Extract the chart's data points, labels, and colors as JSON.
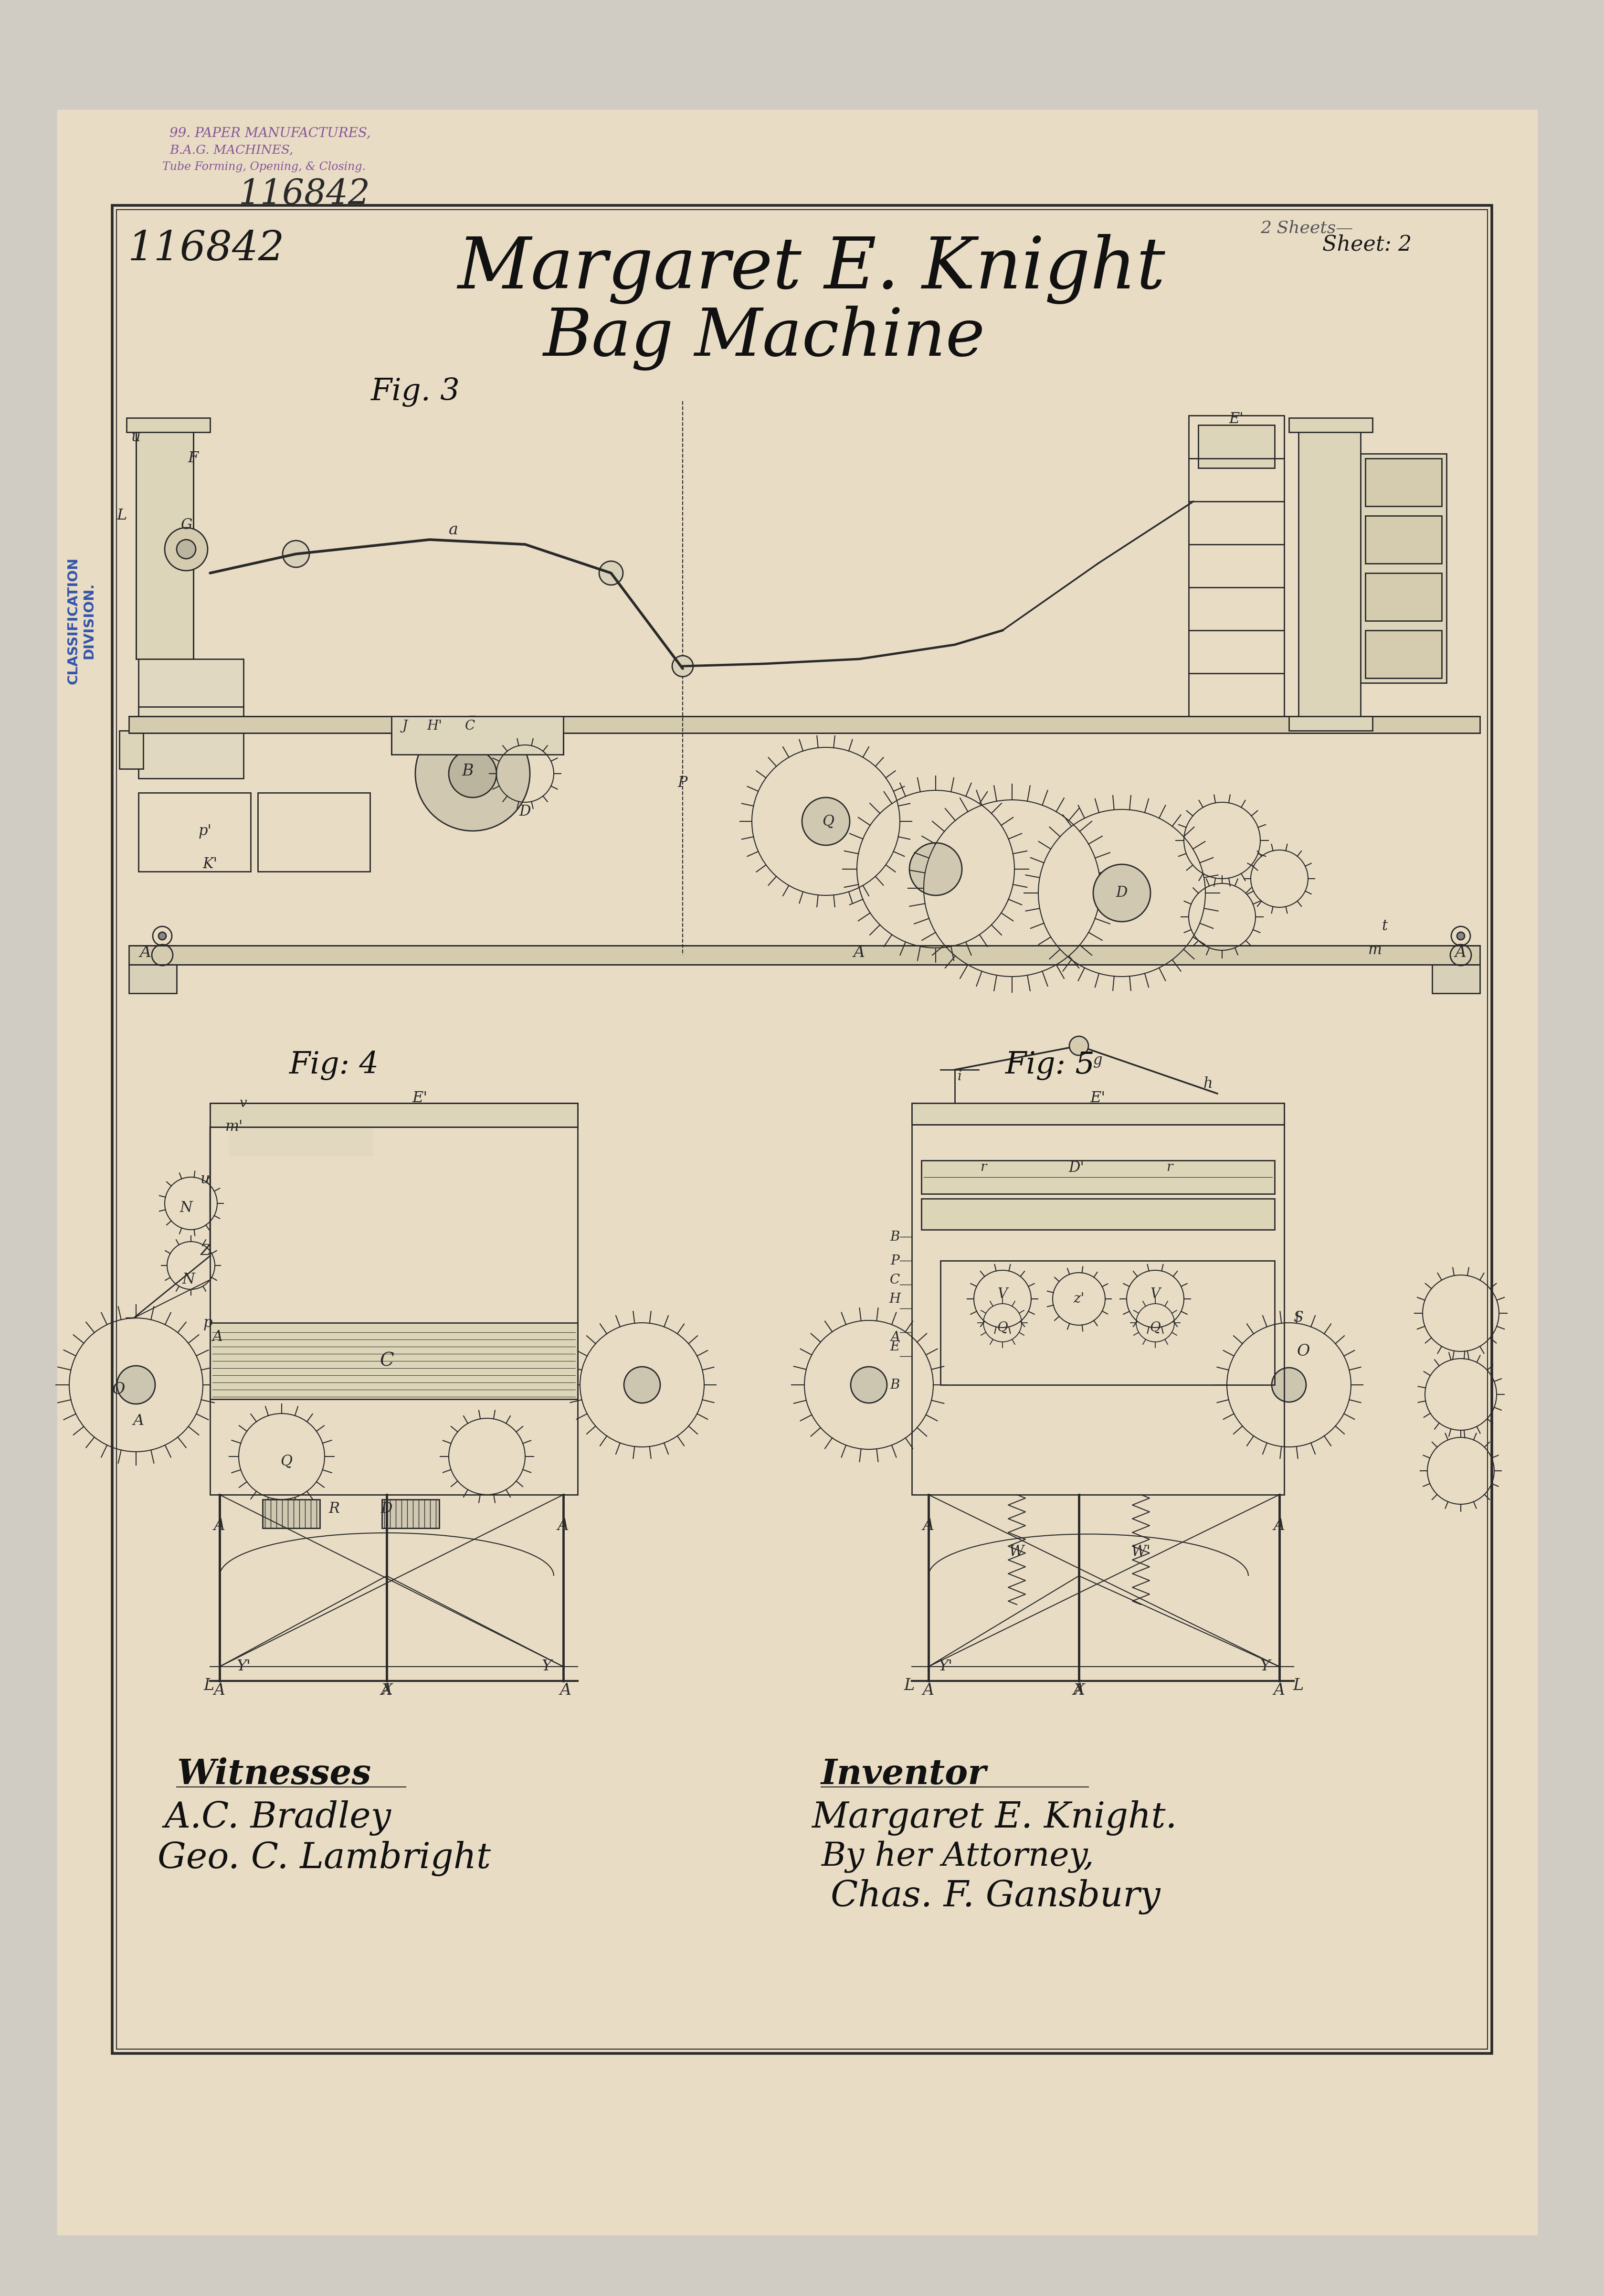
{
  "bg_color": "#ccc8c0",
  "paper_color": "#e8dcc8",
  "border_color": "#333333",
  "ink_color": "#2a2a2a",
  "blue_color": "#3355aa",
  "stamp_color": "#885599",
  "title1": "Margaret E. Knight",
  "title2": "Bag Machine",
  "patent_number": "116842",
  "sheet_text1": "2 Sheets",
  "sheet_text2": "Sheet: 2",
  "fig3_label": "Fig. 3",
  "fig4_label": "Fig: 4",
  "fig5_label": "Fig: 5",
  "witnesses_label": "Witnesses",
  "witness1": "A.C. Bradley",
  "witness2": "Geo. C. Lambright",
  "inventor_label": "Inventor",
  "inventor_name": "Margaret E. Knight.",
  "attorney_text": "By her Attorney,",
  "attorney_name": "Chas. F. Gansbury",
  "classification_text": "CLASSIFICATION\nDIVISION.",
  "stamp_line1": "99. PAPER MANUFACTURES,",
  "stamp_line2": "B.A.G. MACHINES,",
  "stamp_line3": "Tube Forming, Opening, & Closing.",
  "handwritten_number": "116842"
}
